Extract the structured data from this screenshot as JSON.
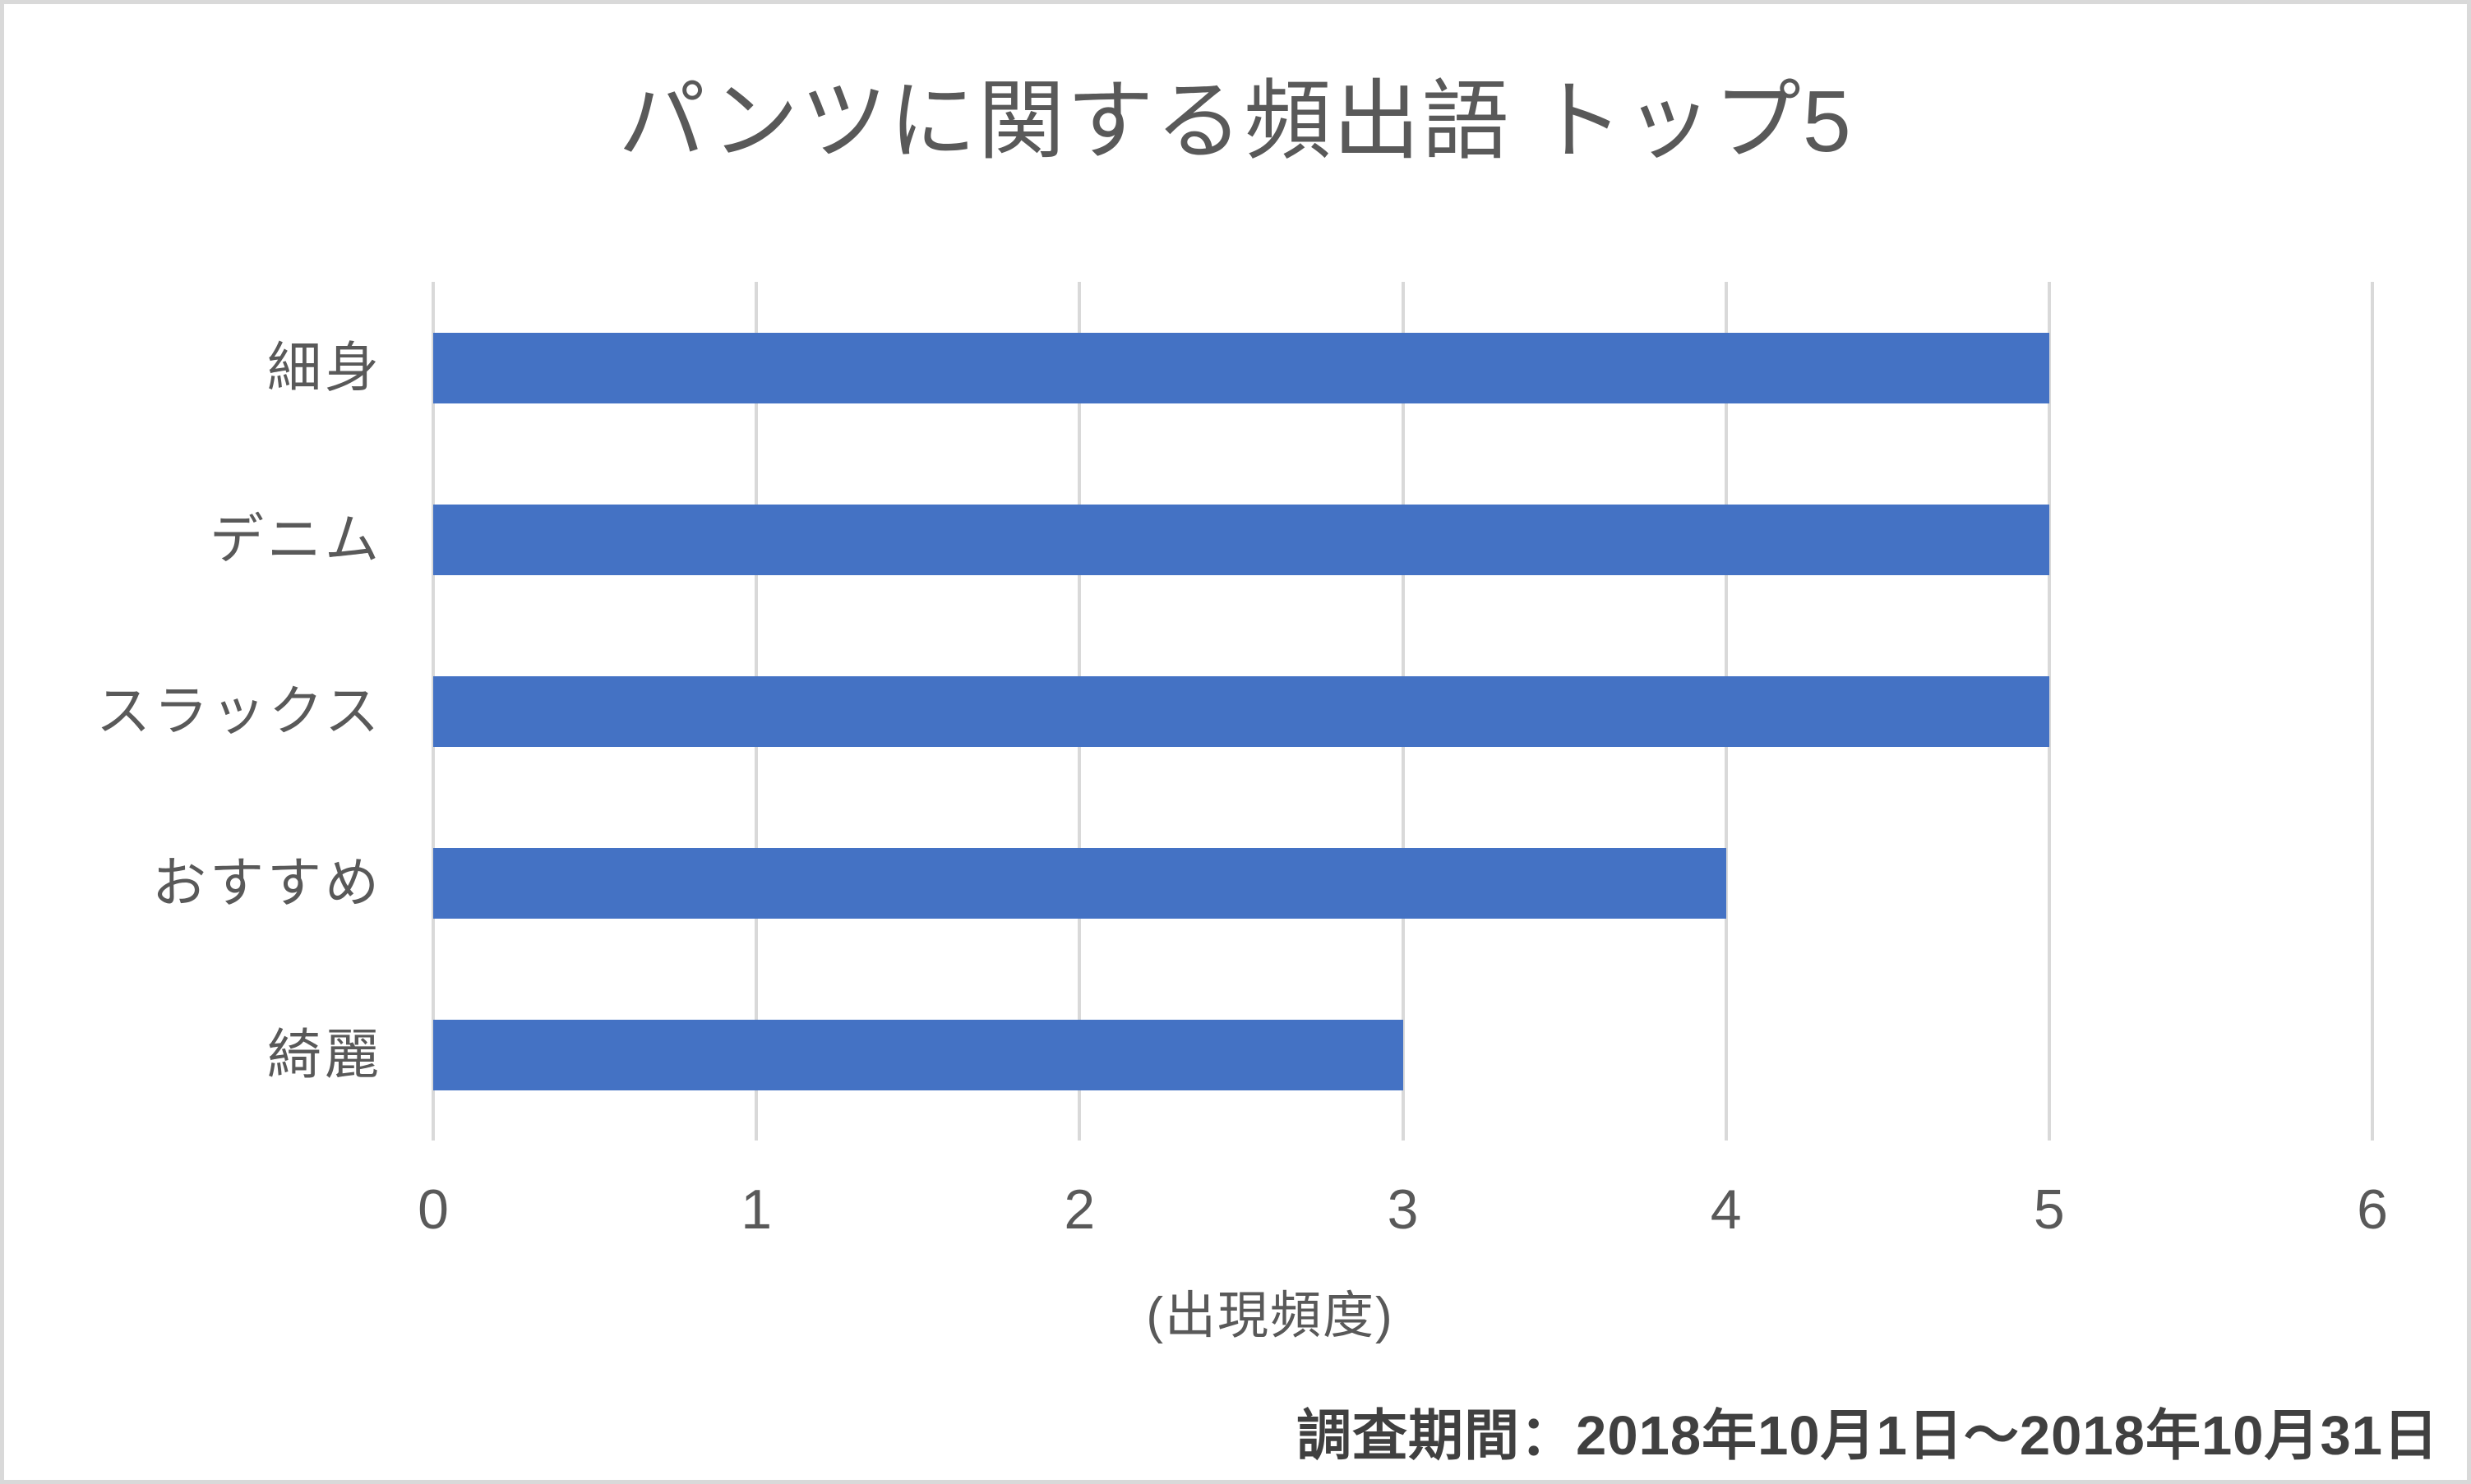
{
  "page": {
    "background_color": "#ffffff",
    "border_color": "#d9d9d9"
  },
  "chart_data": {
    "type": "bar",
    "orientation": "horizontal",
    "title": "パンツに関する頻出語 トップ5",
    "categories": [
      "細身",
      "デニム",
      "スラックス",
      "おすすめ",
      "綺麗"
    ],
    "values": [
      5,
      5,
      5,
      4,
      3
    ],
    "xlabel": "(出現頻度)",
    "ylabel": "",
    "xlim": [
      0,
      6
    ],
    "x_ticks": [
      0,
      1,
      2,
      3,
      4,
      5,
      6
    ],
    "grid": "vertical-on",
    "legend": "none",
    "bar_color": "#4472c4",
    "gridline_color": "#d9d9d9",
    "text_color": "#595959"
  },
  "footnote": {
    "text": "調査期間：2018年10月1日～2018年10月31日"
  }
}
